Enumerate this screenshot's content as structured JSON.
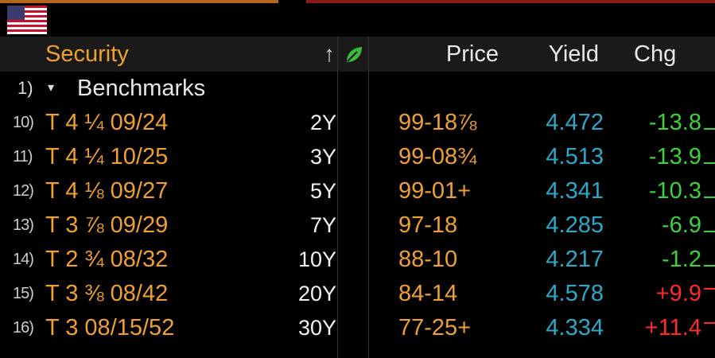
{
  "header": {
    "security_label": "Security",
    "sort_glyph": "↑",
    "leaf_icon": "leaf-icon",
    "price_label": "Price",
    "yield_label": "Yield",
    "chg_label": "Chg"
  },
  "flag_icon": "us-flag-icon",
  "group": {
    "num": "1)",
    "caret": "▾",
    "label": "Benchmarks"
  },
  "rows": [
    {
      "num": "10)",
      "security": "T 4 ¼ 09/24",
      "tenor": "2Y",
      "price": "99-18⅞",
      "yield": "4.472",
      "chg": "-13.8",
      "dir": "neg"
    },
    {
      "num": "11)",
      "security": "T 4 ¼ 10/25",
      "tenor": "3Y",
      "price": "99-08¾",
      "yield": "4.513",
      "chg": "-13.9",
      "dir": "neg"
    },
    {
      "num": "12)",
      "security": "T 4 ⅛ 09/27",
      "tenor": "5Y",
      "price": "99-01+",
      "yield": "4.341",
      "chg": "-10.3",
      "dir": "neg"
    },
    {
      "num": "13)",
      "security": "T 3 ⅞ 09/29",
      "tenor": "7Y",
      "price": "97-18",
      "yield": "4.285",
      "chg": "-6.9",
      "dir": "neg"
    },
    {
      "num": "14)",
      "security": "T 2 ¾ 08/32",
      "tenor": "10Y",
      "price": "88-10",
      "yield": "4.217",
      "chg": "-1.2",
      "dir": "neg"
    },
    {
      "num": "15)",
      "security": "T 3 ⅜ 08/42",
      "tenor": "20Y",
      "price": "84-14",
      "yield": "4.578",
      "chg": "+9.9",
      "dir": "pos"
    },
    {
      "num": "16)",
      "security": "T 3 08/15/52",
      "tenor": "30Y",
      "price": "77-25+",
      "yield": "4.334",
      "chg": "+11.4",
      "dir": "pos"
    }
  ],
  "colors": {
    "security": "#f0a030",
    "price": "#f0a030",
    "yield": "#2aa9c9",
    "chg_negative": "#3ad13a",
    "chg_positive": "#ff2a2a"
  }
}
